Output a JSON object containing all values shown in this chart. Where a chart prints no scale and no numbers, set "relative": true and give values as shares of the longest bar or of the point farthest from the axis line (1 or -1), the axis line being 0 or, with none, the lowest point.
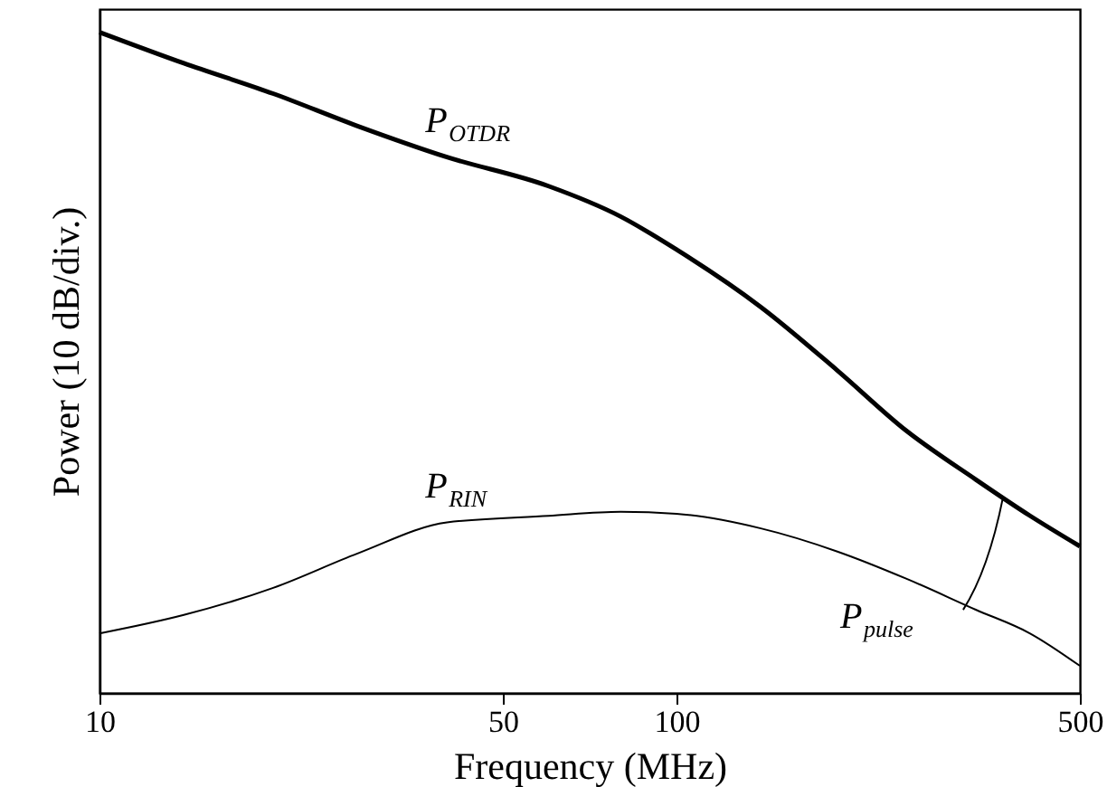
{
  "chart_data": {
    "type": "line",
    "relative": true,
    "xlabel": "Frequency (MHz)",
    "ylabel": "Power (10 dB/div.)",
    "log": "x",
    "xlim": [
      10,
      500
    ],
    "xticks": [
      10,
      50,
      100,
      500
    ],
    "grid": false,
    "marker": "none",
    "line_style": "solid",
    "x": [
      10,
      14,
      20,
      28,
      40,
      60,
      80,
      100,
      140,
      190,
      250,
      330,
      410,
      500
    ],
    "series": [
      {
        "name": "P$_{OTDR}$",
        "color": "#000000",
        "values": [
          1,
          0.953,
          0.907,
          0.858,
          0.811,
          0.767,
          0.721,
          0.671,
          0.584,
          0.488,
          0.397,
          0.323,
          0.268,
          0.222
        ]
      },
      {
        "name": "P$_{RIN}$",
        "color": "#000000",
        "values": [
          0.09,
          0.118,
          0.159,
          0.211,
          0.258,
          0.268,
          0.274,
          0.271,
          0.249,
          0.214,
          0.173,
          0.126,
          0.09,
          0.041
        ]
      }
    ],
    "annotations": [
      "P$_{pulse}$"
    ]
  }
}
